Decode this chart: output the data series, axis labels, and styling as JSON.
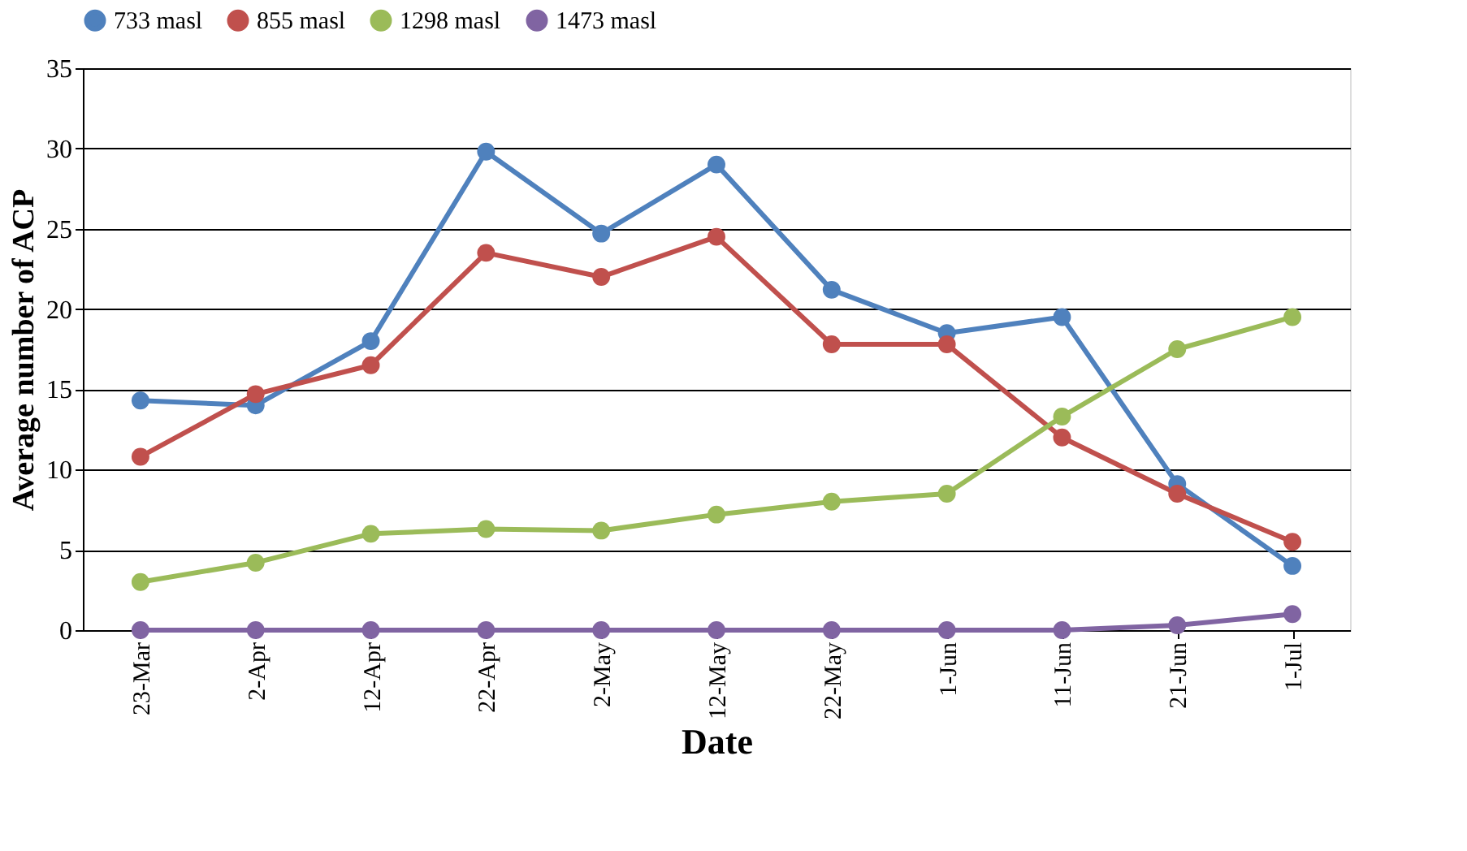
{
  "chart_data": {
    "type": "line",
    "xlabel": "Date",
    "ylabel": "Average number of ACP",
    "categories": [
      "23-Mar",
      "2-Apr",
      "12-Apr",
      "22-Apr",
      "2-May",
      "12-May",
      "22-May",
      "1-Jun",
      "11-Jun",
      "21-Jun",
      "1-Jul"
    ],
    "series": [
      {
        "name": "733 masl",
        "color": "#4f81bd",
        "values": [
          14.3,
          14.0,
          18.0,
          29.8,
          24.7,
          29.0,
          21.2,
          18.5,
          19.5,
          9.1,
          4.0
        ]
      },
      {
        "name": "855 masl",
        "color": "#c0504d",
        "values": [
          10.8,
          14.7,
          16.5,
          23.5,
          22.0,
          24.5,
          17.8,
          17.8,
          12.0,
          8.5,
          5.5
        ]
      },
      {
        "name": "1298 masl",
        "color": "#9bbb59",
        "values": [
          3.0,
          4.2,
          6.0,
          6.3,
          6.2,
          7.2,
          8.0,
          8.5,
          13.3,
          17.5,
          19.5
        ]
      },
      {
        "name": "1473 masl",
        "color": "#8064a2",
        "values": [
          0,
          0,
          0,
          0,
          0,
          0,
          0,
          0,
          0,
          0.3,
          1.0
        ]
      }
    ],
    "ylim": [
      0,
      35
    ],
    "yticks": [
      0,
      5,
      10,
      15,
      20,
      25,
      30,
      35
    ],
    "grid": "y",
    "legend": "top",
    "marker": "circle",
    "line_style": "solid"
  }
}
